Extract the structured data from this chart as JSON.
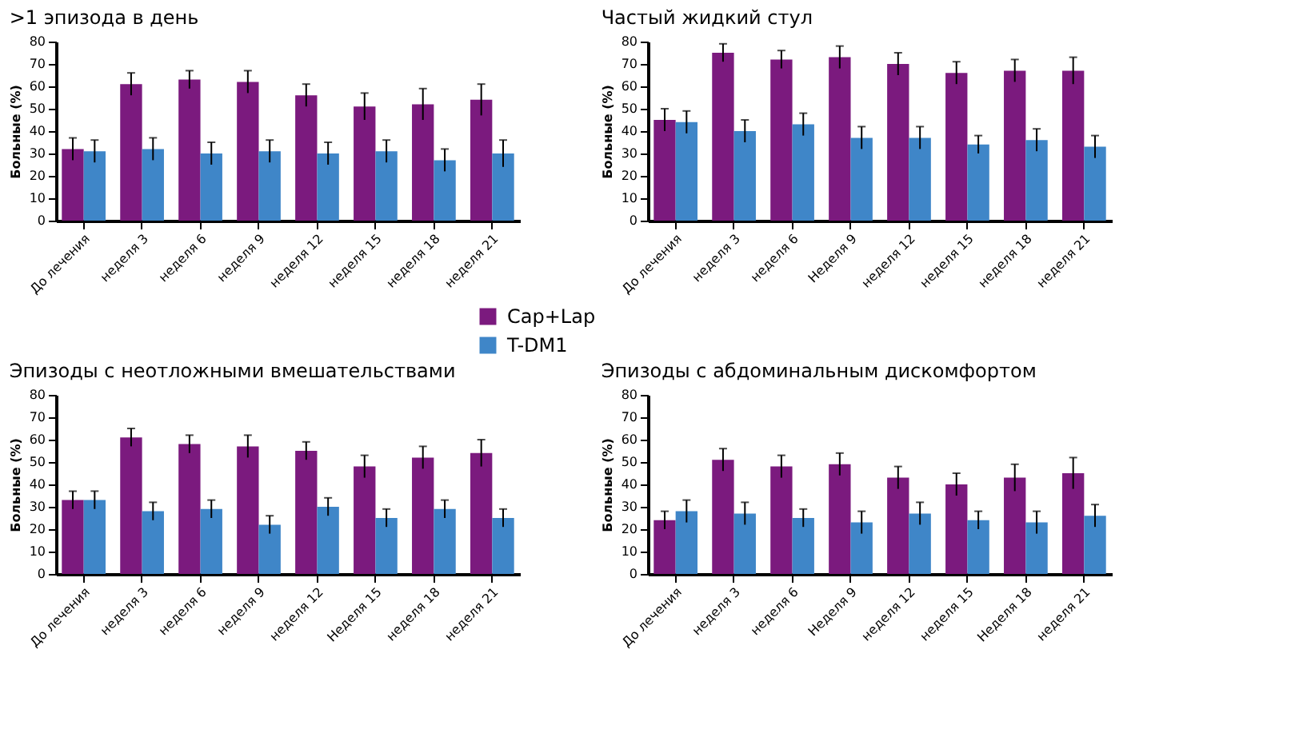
{
  "chart_data": [
    {
      "type": "bar",
      "title": ">1 эпизода в день",
      "ylabel": "Больные (%)",
      "categories": [
        "До лечения",
        "неделя 3",
        "неделя 6",
        "неделя 9",
        "неделя 12",
        "неделя 15",
        "неделя 18",
        "неделя 21"
      ],
      "ylim": [
        0,
        80
      ],
      "yticks": [
        0,
        10,
        20,
        30,
        40,
        50,
        60,
        70,
        80
      ],
      "grid": false,
      "legend": "bottom right",
      "series": [
        {
          "name": "Cap+Lap",
          "color": "#7b1a7e",
          "values": [
            32,
            61,
            63,
            62,
            56,
            51,
            52,
            54
          ],
          "errors": [
            5,
            5,
            4,
            5,
            5,
            6,
            7,
            7
          ]
        },
        {
          "name": "T-DM1",
          "color": "#3f86c8",
          "values": [
            31,
            32,
            30,
            31,
            30,
            31,
            27,
            30
          ],
          "errors": [
            5,
            5,
            5,
            5,
            5,
            5,
            5,
            6
          ]
        }
      ]
    },
    {
      "type": "bar",
      "title": "Частый жидкий стул",
      "ylabel": "Больные (%)",
      "categories": [
        "До лечения",
        "неделя 3",
        "неделя 6",
        "Неделя 9",
        "неделя 12",
        "неделя 15",
        "неделя 18",
        "неделя 21"
      ],
      "ylim": [
        0,
        80
      ],
      "yticks": [
        0,
        10,
        20,
        30,
        40,
        50,
        60,
        70,
        80
      ],
      "grid": false,
      "series": [
        {
          "color": "#7b1a7e",
          "values": [
            45,
            75,
            72,
            73,
            70,
            66,
            67,
            67
          ],
          "errors": [
            5,
            4,
            4,
            5,
            5,
            5,
            5,
            6
          ]
        },
        {
          "color": "#3f86c8",
          "values": [
            44,
            40,
            43,
            37,
            37,
            34,
            36,
            33
          ],
          "errors": [
            5,
            5,
            5,
            5,
            5,
            4,
            5,
            5
          ]
        }
      ]
    },
    {
      "type": "bar",
      "title": "Эпизоды с неотложными вмешательствами",
      "ylabel": "Больные (%)",
      "categories": [
        "До лечения",
        "неделя 3",
        "неделя 6",
        "неделя 9",
        "неделя 12",
        "Неделя 15",
        "неделя 18",
        "неделя 21"
      ],
      "ylim": [
        0,
        80
      ],
      "yticks": [
        0,
        10,
        20,
        30,
        40,
        50,
        60,
        70,
        80
      ],
      "grid": false,
      "series": [
        {
          "color": "#7b1a7e",
          "values": [
            33,
            61,
            58,
            57,
            55,
            48,
            52,
            54
          ],
          "errors": [
            4,
            4,
            4,
            5,
            4,
            5,
            5,
            6
          ]
        },
        {
          "color": "#3f86c8",
          "values": [
            33,
            28,
            29,
            22,
            30,
            25,
            29,
            25
          ],
          "errors": [
            4,
            4,
            4,
            4,
            4,
            4,
            4,
            4
          ]
        }
      ]
    },
    {
      "type": "bar",
      "title": "Эпизоды с абдоминальным дискомфортом",
      "ylabel": "Больные (%)",
      "categories": [
        "До лечения",
        "неделя 3",
        "неделя 6",
        "Неделя 9",
        "неделя 12",
        "неделя 15",
        "Неделя 18",
        "неделя 21"
      ],
      "ylim": [
        0,
        80
      ],
      "yticks": [
        0,
        10,
        20,
        30,
        40,
        50,
        60,
        70,
        80
      ],
      "grid": false,
      "series": [
        {
          "color": "#7b1a7e",
          "values": [
            24,
            51,
            48,
            49,
            43,
            40,
            43,
            45
          ],
          "errors": [
            4,
            5,
            5,
            5,
            5,
            5,
            6,
            7
          ]
        },
        {
          "color": "#3f86c8",
          "values": [
            28,
            27,
            25,
            23,
            27,
            24,
            23,
            26
          ],
          "errors": [
            5,
            5,
            4,
            5,
            5,
            4,
            5,
            5
          ]
        }
      ]
    }
  ]
}
